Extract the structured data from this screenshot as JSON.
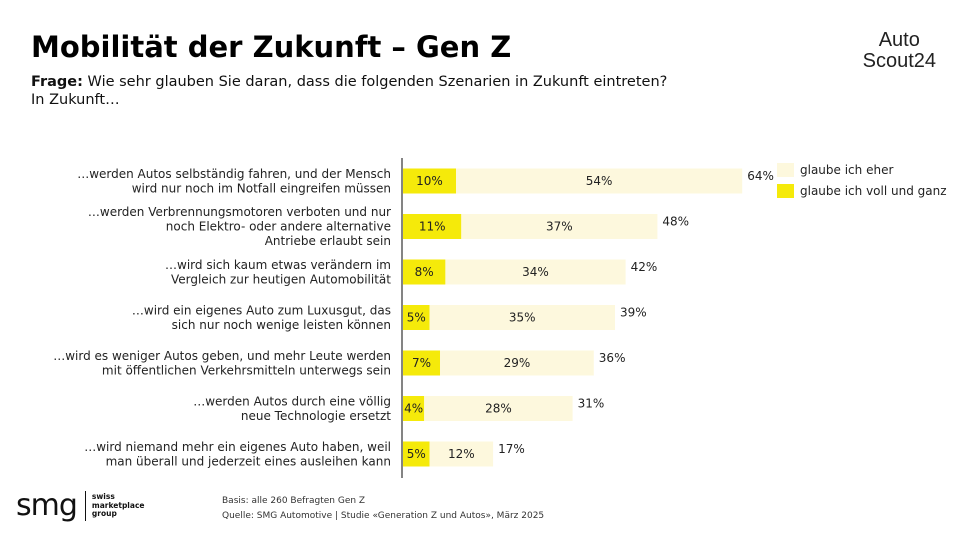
{
  "header": {
    "title": "Mobilität der Zukunft – Gen Z",
    "question_prefix": "Frage:",
    "question_text": "Wie sehr glauben Sie daran, dass die folgenden Szenarien in Zukunft eintreten?",
    "question_line2": "In Zukunft…"
  },
  "brand": {
    "autoscout_line1": "Auto",
    "autoscout_line2": "Scout24",
    "smg_word": "smg",
    "smg_sub": [
      "swiss",
      "marketplace",
      "group"
    ]
  },
  "footer": {
    "basis": "Basis: alle 260 Befragten Gen Z",
    "source": "Quelle: SMG Automotive | Studie «Generation Z und Autos», März 2025"
  },
  "colors": {
    "voll": "#f5ea0a",
    "eher": "#fdf8dd",
    "axis": "#333333"
  },
  "chart_data": {
    "type": "bar",
    "orientation": "horizontal",
    "stacked": true,
    "legend_position": "top-right",
    "categories": [
      [
        "…werden Autos selbständig fahren, und der Mensch",
        "wird nur noch im Notfall eingreifen müssen"
      ],
      [
        "…werden Verbrennungsmotoren verboten und nur",
        "noch Elektro- oder andere alternative",
        "Antriebe erlaubt sein"
      ],
      [
        "…wird sich kaum etwas verändern im",
        "Vergleich zur heutigen Automobilität"
      ],
      [
        "…wird ein eigenes Auto zum Luxusgut, das",
        "sich nur noch wenige leisten können"
      ],
      [
        "…wird es weniger Autos geben, und mehr Leute werden",
        "mit öffentlichen Verkehrsmitteln unterwegs sein"
      ],
      [
        "…werden Autos durch eine völlig",
        "neue Technologie ersetzt"
      ],
      [
        "…wird niemand mehr ein eigenes Auto haben, weil",
        "man überall und jederzeit eines ausleihen kann"
      ]
    ],
    "series": [
      {
        "name": "glaube ich voll und ganz",
        "values": [
          10,
          11,
          8,
          5,
          7,
          4,
          5
        ],
        "labels": [
          "10%",
          "11%",
          "8%",
          "5%",
          "7%",
          "4%",
          "5%"
        ]
      },
      {
        "name": "glaube ich eher",
        "values": [
          54,
          37,
          34,
          35,
          29,
          28,
          12
        ],
        "labels": [
          "54%",
          "37%",
          "34%",
          "35%",
          "29%",
          "28%",
          "12%"
        ]
      }
    ],
    "totals": [
      64,
      48,
      42,
      39,
      36,
      31,
      17
    ],
    "total_labels": [
      "64%",
      "48%",
      "42%",
      "39%",
      "36%",
      "31%",
      "17%"
    ],
    "legend": [
      "glaube ich eher",
      "glaube ich voll und ganz"
    ],
    "xlim": [
      0,
      70
    ]
  }
}
